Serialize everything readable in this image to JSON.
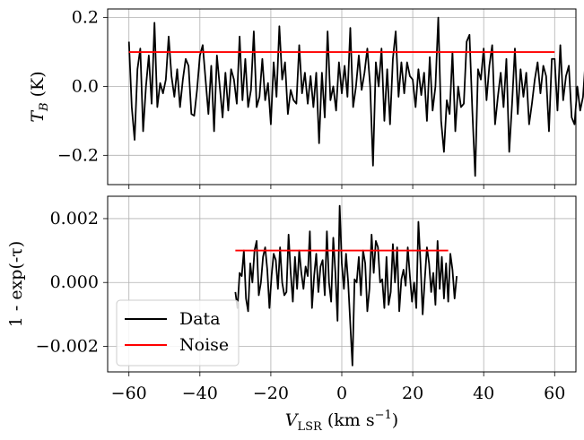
{
  "chart_data": [
    {
      "type": "line",
      "ylabel": "T_B (K)",
      "xlim": [
        -66,
        66
      ],
      "ylim": [
        -0.285,
        0.225
      ],
      "grid": true,
      "xticks": [
        -60,
        -40,
        -20,
        0,
        20,
        40,
        60
      ],
      "yticks": [
        -0.2,
        0.0,
        0.2
      ],
      "ytick_labels": [
        "−0.2",
        "0.0",
        "0.2"
      ],
      "series": [
        {
          "name": "Data",
          "color": "#000000",
          "x_start": -60,
          "x_step": 0.8,
          "values": [
            0.13,
            -0.06,
            -0.155,
            0.05,
            0.11,
            -0.13,
            0.0,
            0.09,
            -0.05,
            0.185,
            -0.06,
            0.01,
            -0.02,
            0.02,
            0.145,
            0.03,
            -0.03,
            0.05,
            -0.06,
            0.02,
            0.08,
            0.06,
            -0.08,
            -0.085,
            -0.01,
            0.09,
            0.12,
            0.02,
            -0.08,
            0.06,
            -0.13,
            0.09,
            0.0,
            -0.09,
            0.04,
            -0.07,
            0.05,
            0.02,
            -0.05,
            0.145,
            -0.04,
            0.08,
            -0.06,
            -0.01,
            0.16,
            -0.06,
            -0.03,
            0.08,
            -0.04,
            0.01,
            -0.11,
            0.07,
            -0.03,
            0.175,
            0.02,
            0.07,
            -0.08,
            -0.01,
            -0.04,
            -0.05,
            0.12,
            -0.02,
            0.04,
            -0.05,
            0.03,
            -0.06,
            0.04,
            -0.165,
            0.04,
            -0.09,
            0.16,
            -0.04,
            0.0,
            -0.07,
            0.07,
            -0.02,
            0.06,
            -0.03,
            0.17,
            -0.06,
            0.0,
            0.09,
            -0.01,
            0.04,
            0.11,
            0.0,
            -0.23,
            0.07,
            0.0,
            0.11,
            -0.1,
            0.05,
            -0.11,
            0.08,
            0.16,
            -0.03,
            0.07,
            -0.02,
            0.07,
            0.03,
            0.02,
            -0.06,
            0.05,
            -0.025,
            0.04,
            -0.1,
            0.085,
            -0.07,
            0.0,
            0.2,
            -0.1,
            -0.19,
            -0.04,
            -0.08,
            0.1,
            -0.13,
            0.0,
            -0.06,
            -0.05,
            0.13,
            0.15,
            -0.07,
            -0.26,
            0.05,
            0.02,
            0.11,
            -0.04,
            0.06,
            0.12,
            -0.11,
            -0.03,
            0.04,
            -0.06,
            0.08,
            -0.19,
            -0.05,
            0.11,
            -0.08,
            0.05,
            -0.03,
            0.04,
            -0.11,
            -0.05,
            0.02,
            0.07,
            -0.02,
            0.06,
            0.03,
            -0.13,
            0.08,
            0.08,
            -0.07,
            0.12,
            -0.04,
            0.03,
            0.06,
            -0.09,
            -0.11,
            0.0,
            -0.07,
            -0.03,
            0.09,
            0.0,
            -0.02,
            0.01,
            0.045,
            -0.06,
            0.02,
            0.1,
            -0.05,
            -0.1,
            0.05,
            0.03,
            0.09,
            -0.03,
            -0.14,
            0.06,
            0.11,
            -0.03,
            -0.05,
            0.02,
            0.05,
            0.14,
            -0.04,
            0.03,
            -0.1,
            0.03,
            0.11,
            -0.1,
            0.08,
            0.1,
            -0.08,
            -0.06,
            0.03,
            0.02,
            -0.08,
            0.06,
            -0.11,
            0.09,
            -0.06,
            0.07,
            -0.02,
            0.12,
            -0.1,
            0.02,
            0.07,
            -0.08,
            -0.01,
            0.08,
            -0.04
          ]
        },
        {
          "name": "Noise",
          "color": "#ff0000",
          "x": [
            -60,
            60
          ],
          "values": [
            0.1,
            0.1
          ]
        }
      ]
    },
    {
      "type": "line",
      "xlabel": "V_LSR (km s⁻¹)",
      "ylabel": "1 - exp(-τ)",
      "xlim": [
        -66,
        66
      ],
      "ylim": [
        -0.0028,
        0.0027
      ],
      "grid": true,
      "xticks": [
        -60,
        -40,
        -20,
        0,
        20,
        40,
        60
      ],
      "xtick_labels": [
        "−60",
        "−40",
        "−20",
        "0",
        "20",
        "40",
        "60"
      ],
      "yticks": [
        -0.002,
        0.0,
        0.002
      ],
      "ytick_labels": [
        "−0.002",
        "0.000",
        "0.002"
      ],
      "legend": {
        "location": "lower-left",
        "entries": [
          "Data",
          "Noise"
        ]
      },
      "series": [
        {
          "name": "Data",
          "color": "#000000",
          "x_start": -30,
          "x_step": 0.6,
          "values": [
            -0.0003,
            -0.0008,
            0.0003,
            0.0002,
            0.001,
            -0.0005,
            -0.0009,
            0.0006,
            0.0,
            0.001,
            0.0013,
            -0.0004,
            0.0,
            0.0008,
            0.0011,
            0.0004,
            -0.0008,
            0.0002,
            0.0009,
            0.0007,
            -0.0002,
            0.0011,
            0.0,
            -0.0004,
            -0.0003,
            0.0015,
            0.0003,
            -0.0006,
            0.0008,
            -0.0002,
            0.001,
            0.0003,
            -0.0002,
            0.0005,
            0.0002,
            0.0016,
            -0.0008,
            0.0002,
            0.0009,
            -0.0003,
            0.0005,
            0.0007,
            -0.0004,
            0.0016,
            0.0,
            -0.0006,
            0.0014,
            0.0003,
            -0.0012,
            0.0024,
            0.0006,
            -0.0002,
            0.0009,
            0.0,
            -0.0013,
            -0.0026,
            0.0001,
            0.0,
            0.0008,
            -0.0004,
            0.001,
            0.0006,
            -0.0009,
            -0.0002,
            0.0015,
            0.0003,
            0.0013,
            0.0011,
            0.0,
            0.0001,
            -0.0008,
            0.0008,
            -0.0007,
            -0.0003,
            0.0012,
            0.0,
            0.0011,
            -0.0009,
            0.0001,
            0.0004,
            -0.0001,
            0.0011,
            0.0002,
            -0.0006,
            0.0,
            -0.0008,
            0.0019,
            0.0006,
            -0.001,
            0.0001,
            0.0011,
            0.0006,
            -0.0003,
            0.0003,
            -0.0007,
            0.0013,
            -0.0002,
            0.0008,
            -0.0005,
            0.0006,
            -0.0006,
            0.0009,
            0.0004,
            -0.0005,
            0.0002
          ]
        },
        {
          "name": "Noise",
          "color": "#ff0000",
          "x": [
            -30,
            30
          ],
          "values": [
            0.001,
            0.001
          ]
        }
      ]
    }
  ]
}
